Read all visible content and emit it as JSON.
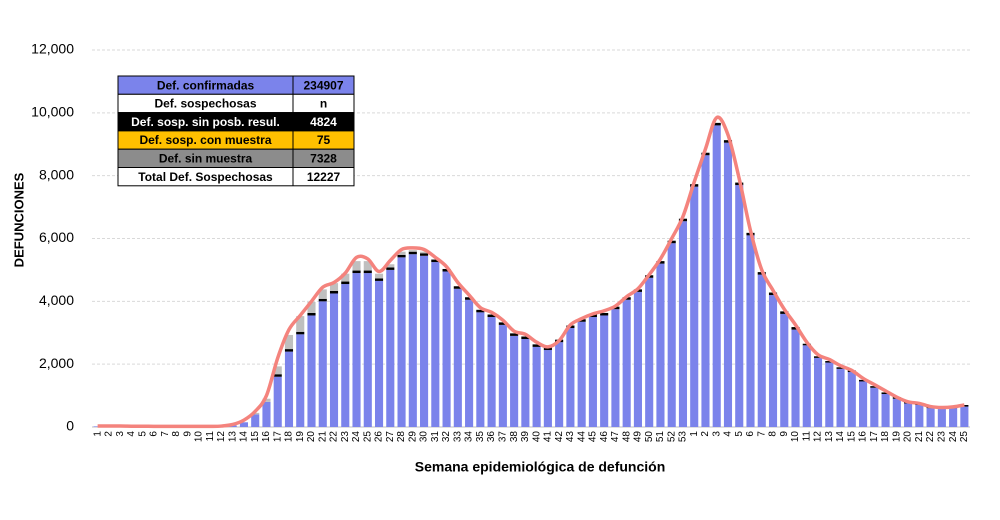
{
  "chart_data": {
    "type": "bar",
    "stacked": true,
    "ylabel": "DEFUNCIONES",
    "xlabel": "Semana epidemiológica de defunción",
    "categories": [
      "1",
      "2",
      "3",
      "4",
      "5",
      "6",
      "7",
      "8",
      "9",
      "10",
      "11",
      "12",
      "13",
      "14",
      "15",
      "16",
      "17",
      "18",
      "19",
      "20",
      "21",
      "22",
      "23",
      "24",
      "25",
      "26",
      "27",
      "28",
      "29",
      "30",
      "31",
      "32",
      "33",
      "34",
      "35",
      "36",
      "37",
      "38",
      "39",
      "40",
      "41",
      "42",
      "43",
      "44",
      "45",
      "46",
      "47",
      "48",
      "49",
      "50",
      "51",
      "52",
      "53",
      "1",
      "2",
      "3",
      "4",
      "5",
      "6",
      "7",
      "8",
      "9",
      "10",
      "11",
      "12",
      "13",
      "14",
      "15",
      "16",
      "17",
      "18",
      "19",
      "20",
      "21",
      "22",
      "23",
      "24",
      "25"
    ],
    "series": [
      {
        "color": "#7b83eb",
        "values": [
          20,
          20,
          20,
          15,
          15,
          10,
          10,
          10,
          10,
          10,
          10,
          20,
          50,
          150,
          400,
          800,
          1600,
          2400,
          2950,
          3550,
          4000,
          4250,
          4550,
          4900,
          4900,
          4650,
          5000,
          5400,
          5500,
          5450,
          5250,
          4950,
          4400,
          4050,
          3650,
          3500,
          3250,
          2900,
          2800,
          2550,
          2450,
          2700,
          3150,
          3350,
          3500,
          3550,
          3750,
          4050,
          4300,
          4750,
          5200,
          5850,
          6550,
          7650,
          8650,
          9600,
          9050,
          7700,
          6100,
          4850,
          4200,
          3600,
          3100,
          2600,
          2200,
          2050,
          1850,
          1750,
          1450,
          1250,
          1050,
          900,
          750,
          700,
          600,
          580,
          600,
          650
        ]
      },
      {
        "color": "#000000",
        "values": [
          0,
          0,
          0,
          0,
          0,
          0,
          0,
          0,
          0,
          0,
          0,
          0,
          0,
          0,
          0,
          0,
          80,
          80,
          80,
          80,
          80,
          80,
          80,
          80,
          80,
          80,
          80,
          80,
          80,
          80,
          80,
          80,
          80,
          80,
          80,
          80,
          80,
          80,
          80,
          80,
          80,
          80,
          80,
          80,
          80,
          80,
          80,
          80,
          80,
          80,
          80,
          80,
          80,
          80,
          80,
          80,
          80,
          80,
          80,
          80,
          80,
          80,
          80,
          50,
          50,
          50,
          50,
          50,
          50,
          50,
          50,
          50,
          50,
          50,
          50,
          50,
          50,
          50
        ]
      },
      {
        "color": "#bfbfbf",
        "values": [
          0,
          0,
          0,
          0,
          0,
          0,
          0,
          0,
          0,
          0,
          0,
          0,
          0,
          0,
          50,
          100,
          250,
          450,
          500,
          350,
          300,
          250,
          250,
          300,
          300,
          150,
          100,
          100,
          50,
          50,
          0,
          0,
          0,
          0,
          0,
          0,
          0,
          0,
          0,
          0,
          0,
          0,
          0,
          0,
          0,
          0,
          0,
          0,
          0,
          0,
          0,
          0,
          0,
          0,
          0,
          0,
          0,
          0,
          0,
          0,
          0,
          0,
          0,
          0,
          0,
          0,
          0,
          0,
          0,
          0,
          0,
          0,
          0,
          0,
          0,
          0,
          0,
          0
        ]
      }
    ],
    "line": {
      "color": "#f4837d",
      "values": [
        30,
        30,
        30,
        25,
        25,
        20,
        20,
        20,
        20,
        20,
        20,
        30,
        80,
        220,
        500,
        1000,
        2200,
        3100,
        3550,
        4000,
        4450,
        4600,
        4900,
        5400,
        5350,
        4950,
        5300,
        5650,
        5700,
        5650,
        5400,
        5100,
        4600,
        4200,
        3800,
        3650,
        3400,
        3050,
        2950,
        2700,
        2550,
        2750,
        3250,
        3450,
        3600,
        3700,
        3850,
        4150,
        4400,
        4850,
        5350,
        6000,
        6700,
        7800,
        8850,
        9850,
        9300,
        7900,
        6250,
        5000,
        4350,
        3750,
        3250,
        2700,
        2300,
        2150,
        1950,
        1800,
        1550,
        1350,
        1150,
        950,
        800,
        750,
        650,
        620,
        640,
        700
      ]
    },
    "ylim": [
      0,
      12000
    ],
    "yticks": [
      0,
      {
        "value": 2000,
        "label": "2,000"
      },
      {
        "value": 4000,
        "label": "4,000"
      },
      {
        "value": 6000,
        "label": "6,000"
      },
      {
        "value": 8000,
        "label": "8,000"
      },
      {
        "value": 10000,
        "label": "10,000"
      },
      {
        "value": 12000,
        "label": "12,000"
      }
    ],
    "grid": true
  },
  "table": {
    "rows": [
      [
        "Def. confirmadas",
        "234907"
      ],
      [
        "Def. sospechosas",
        "n"
      ],
      [
        "Def. sosp. sin posb. resul.",
        "4824"
      ],
      [
        "Def. sosp. con  muestra",
        "75"
      ],
      [
        "Def. sin muestra",
        "7328"
      ],
      [
        "Total Def. Sospechosas",
        "12227"
      ]
    ]
  }
}
